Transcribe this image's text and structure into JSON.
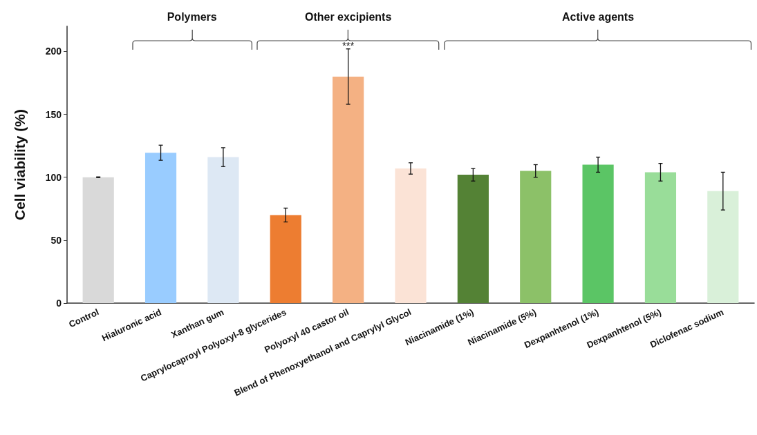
{
  "chart_data": {
    "type": "bar",
    "categories": [
      "Control",
      "Hialuronic acid",
      "Xanthan gum",
      "Caprylocaproyl Polyoxyl-8 glycerides",
      "Polyoxyl 40 castor oil",
      "Blend of Phenoxyethanol and Caprylyl Glycol",
      "Niacinamide (1%)",
      "Niacinamide (5%)",
      "Dexpanhtenol (1%)",
      "Dexpanhtenol (5%)",
      "Diclofenac sodium"
    ],
    "values": [
      100,
      119.5,
      116,
      70,
      180,
      107,
      102,
      105,
      110,
      104,
      89
    ],
    "errors": [
      0.3,
      6,
      7.5,
      5.5,
      22,
      4.5,
      5,
      5,
      6,
      7,
      15
    ],
    "colors": [
      "#d9d9d9",
      "#99ccff",
      "#dde8f4",
      "#ed7d31",
      "#f4b183",
      "#fbe3d6",
      "#548235",
      "#8cc168",
      "#5bc565",
      "#99dd99",
      "#d9f0d9"
    ],
    "ylabel": "Cell viability (%)",
    "ylim": [
      0,
      220
    ],
    "yticks": [
      0,
      50,
      100,
      150,
      200
    ],
    "grid": false,
    "annotations": [
      "Polymers",
      "Other excipients",
      "Active agents",
      {
        "text": "***",
        "x": "Polyoxyl 40 castor oil",
        "y": 202
      }
    ]
  }
}
